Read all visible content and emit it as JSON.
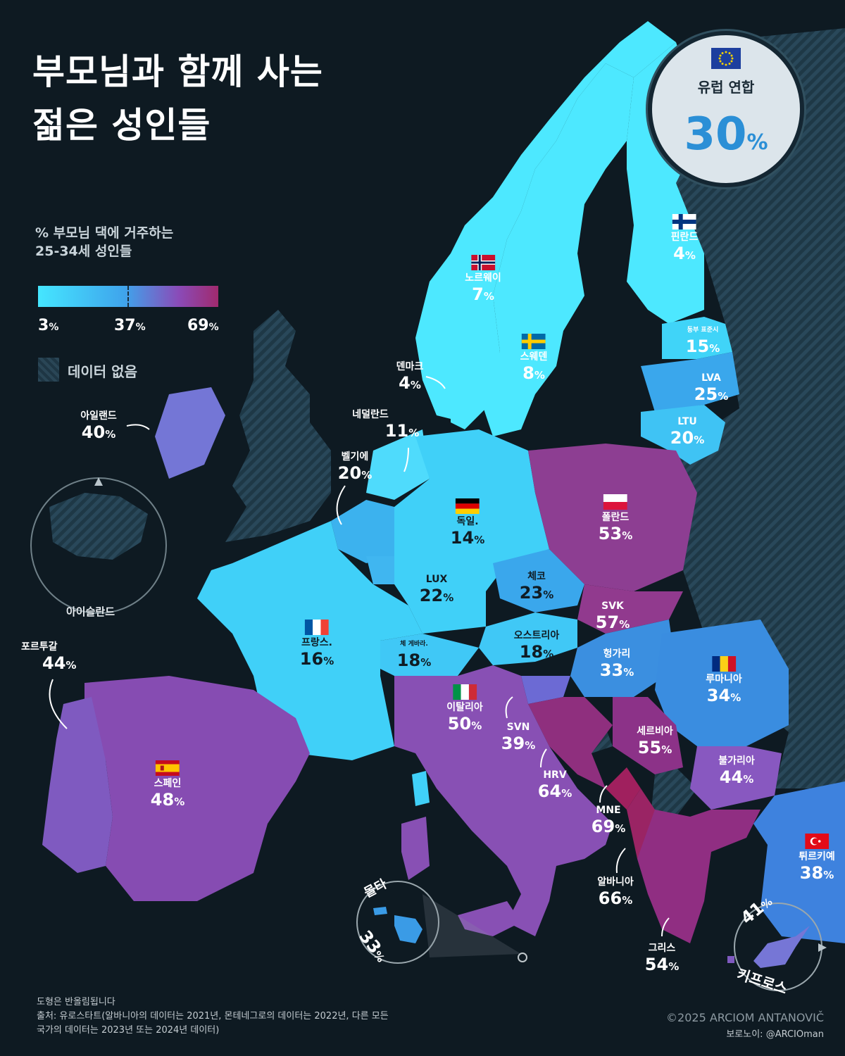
{
  "title_line1": "부모님과 함께 사는",
  "title_line2": "젊은 성인들",
  "legend": {
    "label_line1": "% 부모님 댁에 거주하는",
    "label_line2": "25-34세 성인들",
    "min": "3",
    "mid": "37",
    "max": "69",
    "pct": "%",
    "nodata": "데이터 없음",
    "colors": [
      "#45e6ff",
      "#3fa4ec",
      "#8a4bb8",
      "#a02a6e"
    ]
  },
  "eu": {
    "name": "유럽 연합",
    "value": "30",
    "pct": "%"
  },
  "countries": {
    "norway": {
      "name": "노르웨이",
      "value": "7"
    },
    "finland": {
      "name": "핀란드",
      "value": "4"
    },
    "estonia": {
      "name": "동부 표준시",
      "value": "15"
    },
    "latvia": {
      "name": "LVA",
      "value": "25"
    },
    "lithuania": {
      "name": "LTU",
      "value": "20"
    },
    "sweden": {
      "name": "스웨덴",
      "value": "8"
    },
    "denmark": {
      "name": "덴마크",
      "value": "4"
    },
    "ireland": {
      "name": "아일랜드",
      "value": "40"
    },
    "netherlands": {
      "name": "네덜란드",
      "value": "11"
    },
    "belgium": {
      "name": "벨기에",
      "value": "20"
    },
    "germany": {
      "name": "독일.",
      "value": "14"
    },
    "poland": {
      "name": "폴란드",
      "value": "53"
    },
    "luxembourg": {
      "name": "LUX",
      "value": "22"
    },
    "czech": {
      "name": "체코",
      "value": "23"
    },
    "slovakia": {
      "name": "SVK",
      "value": "57"
    },
    "france": {
      "name": "프랑스.",
      "value": "16"
    },
    "austria": {
      "name": "오스트리아",
      "value": "18"
    },
    "switzerland": {
      "name": "체 게바라.",
      "value": "18"
    },
    "hungary": {
      "name": "헝가리",
      "value": "33"
    },
    "romania": {
      "name": "루마니아",
      "value": "34"
    },
    "portugal": {
      "name": "포르투갈",
      "value": "44"
    },
    "italy": {
      "name": "이탈리아",
      "value": "50"
    },
    "slovenia": {
      "name": "SVN",
      "value": "39"
    },
    "serbia": {
      "name": "세르비아",
      "value": "55"
    },
    "spain": {
      "name": "스페인",
      "value": "48"
    },
    "croatia": {
      "name": "HRV",
      "value": "64"
    },
    "bulgaria": {
      "name": "불가리아",
      "value": "44"
    },
    "montenegro": {
      "name": "MNE",
      "value": "69"
    },
    "turkey": {
      "name": "튀르키예",
      "value": "38"
    },
    "albania": {
      "name": "알바니아",
      "value": "66"
    },
    "greece": {
      "name": "그리스",
      "value": "54"
    },
    "malta": {
      "name": "몰타",
      "value": "33"
    },
    "cyprus": {
      "name": "키프로스",
      "value": "41"
    },
    "iceland": {
      "name": "아이슬란드"
    }
  },
  "footer": {
    "line1": "도형은 반올림됩니다",
    "line2": "출처: 유로스타트(알바니아의 데이터는 2021년, 몬테네그로의 데이터는 2022년, 다른 모든",
    "line3": "국가의 데이터는 2023년 또는 2024년 데이터)",
    "copyright": "©2025 ARCIOM ANTANOVIČ",
    "credit": "보로노이: @ARCIOman"
  }
}
